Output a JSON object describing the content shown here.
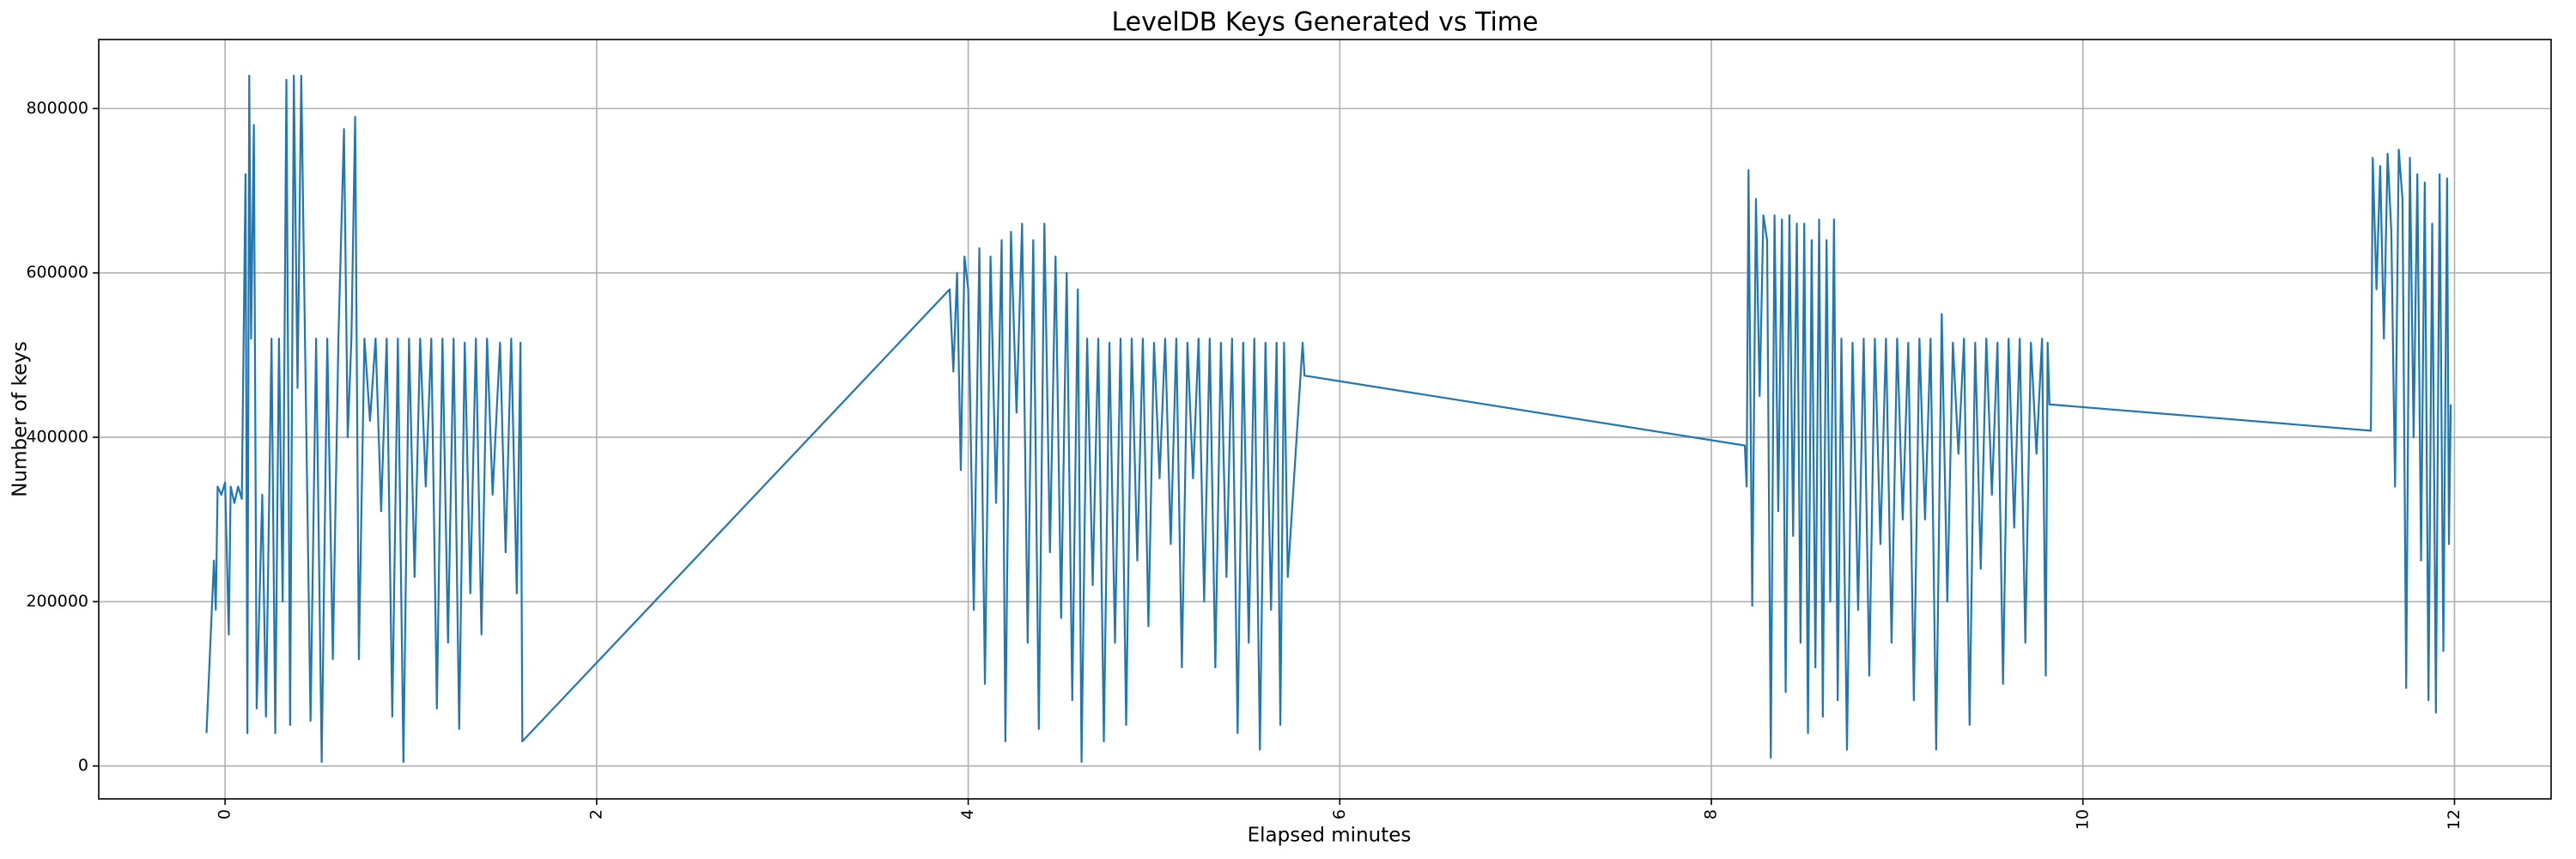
{
  "chart_data": {
    "type": "line",
    "title": "LevelDB Keys Generated vs Time",
    "xlabel": "Elapsed minutes",
    "ylabel": "Number of keys",
    "xlim": [
      -0.68,
      12.52
    ],
    "ylim": [
      -40000,
      884000
    ],
    "xticks": [
      0,
      2,
      4,
      6,
      8,
      10,
      12
    ],
    "yticks": [
      0,
      200000,
      400000,
      600000,
      800000
    ],
    "grid": true,
    "series": [
      {
        "name": "keys",
        "color": "#1f77b4",
        "x": [
          -0.1,
          -0.06,
          -0.05,
          -0.04,
          -0.02,
          0.0,
          0.02,
          0.03,
          0.05,
          0.07,
          0.09,
          0.11,
          0.12,
          0.13,
          0.14,
          0.155,
          0.17,
          0.2,
          0.22,
          0.25,
          0.27,
          0.29,
          0.31,
          0.33,
          0.35,
          0.37,
          0.39,
          0.41,
          0.43,
          0.46,
          0.49,
          0.52,
          0.55,
          0.58,
          0.61,
          0.64,
          0.66,
          0.68,
          0.7,
          0.72,
          0.75,
          0.78,
          0.81,
          0.84,
          0.87,
          0.9,
          0.93,
          0.96,
          0.99,
          1.02,
          1.05,
          1.08,
          1.11,
          1.14,
          1.17,
          1.2,
          1.23,
          1.26,
          1.29,
          1.32,
          1.35,
          1.38,
          1.41,
          1.44,
          1.48,
          1.51,
          1.54,
          1.57,
          1.59,
          1.6,
          3.9,
          3.92,
          3.94,
          3.96,
          3.98,
          4.0,
          4.03,
          4.06,
          4.09,
          4.12,
          4.15,
          4.18,
          4.2,
          4.23,
          4.26,
          4.29,
          4.32,
          4.35,
          4.38,
          4.41,
          4.44,
          4.47,
          4.5,
          4.53,
          4.56,
          4.59,
          4.61,
          4.64,
          4.67,
          4.7,
          4.73,
          4.76,
          4.79,
          4.82,
          4.85,
          4.88,
          4.91,
          4.94,
          4.97,
          5.0,
          5.03,
          5.06,
          5.09,
          5.12,
          5.15,
          5.18,
          5.21,
          5.24,
          5.27,
          5.3,
          5.33,
          5.36,
          5.39,
          5.42,
          5.45,
          5.48,
          5.51,
          5.54,
          5.57,
          5.6,
          5.63,
          5.66,
          5.68,
          5.7,
          5.72,
          5.8,
          5.81,
          8.18,
          8.19,
          8.2,
          8.22,
          8.24,
          8.26,
          8.28,
          8.3,
          8.32,
          8.34,
          8.36,
          8.38,
          8.4,
          8.42,
          8.44,
          8.46,
          8.48,
          8.5,
          8.52,
          8.54,
          8.56,
          8.58,
          8.6,
          8.62,
          8.64,
          8.66,
          8.68,
          8.7,
          8.73,
          8.76,
          8.79,
          8.82,
          8.85,
          8.88,
          8.91,
          8.94,
          8.97,
          9.0,
          9.03,
          9.06,
          9.09,
          9.12,
          9.15,
          9.18,
          9.21,
          9.24,
          9.27,
          9.3,
          9.33,
          9.36,
          9.39,
          9.42,
          9.45,
          9.48,
          9.51,
          9.54,
          9.57,
          9.6,
          9.63,
          9.66,
          9.69,
          9.72,
          9.75,
          9.78,
          9.8,
          9.81,
          9.82,
          11.55,
          11.56,
          11.58,
          11.6,
          11.62,
          11.64,
          11.66,
          11.68,
          11.7,
          11.72,
          11.74,
          11.76,
          11.78,
          11.8,
          11.82,
          11.84,
          11.86,
          11.88,
          11.9,
          11.92,
          11.94,
          11.96,
          11.97,
          11.98
        ],
        "values": [
          40000,
          250000,
          190000,
          340000,
          330000,
          345000,
          160000,
          340000,
          320000,
          340000,
          325000,
          720000,
          40000,
          840000,
          520000,
          780000,
          70000,
          330000,
          60000,
          520000,
          40000,
          520000,
          200000,
          835000,
          50000,
          840000,
          460000,
          840000,
          520000,
          55000,
          520000,
          5000,
          520000,
          130000,
          520000,
          775000,
          400000,
          520000,
          790000,
          130000,
          520000,
          420000,
          520000,
          310000,
          520000,
          60000,
          520000,
          5000,
          520000,
          230000,
          520000,
          340000,
          520000,
          70000,
          520000,
          150000,
          520000,
          45000,
          515000,
          210000,
          520000,
          160000,
          520000,
          330000,
          515000,
          260000,
          520000,
          210000,
          515000,
          30000,
          580000,
          480000,
          600000,
          360000,
          620000,
          580000,
          190000,
          630000,
          100000,
          620000,
          320000,
          640000,
          30000,
          650000,
          430000,
          660000,
          150000,
          640000,
          45000,
          660000,
          260000,
          620000,
          180000,
          600000,
          80000,
          580000,
          5000,
          520000,
          220000,
          520000,
          30000,
          515000,
          150000,
          520000,
          50000,
          520000,
          250000,
          520000,
          170000,
          515000,
          350000,
          520000,
          270000,
          520000,
          120000,
          515000,
          350000,
          520000,
          200000,
          520000,
          120000,
          515000,
          230000,
          520000,
          40000,
          515000,
          150000,
          520000,
          20000,
          515000,
          190000,
          515000,
          50000,
          515000,
          230000,
          515000,
          475000,
          390000,
          340000,
          725000,
          195000,
          690000,
          450000,
          670000,
          640000,
          10000,
          670000,
          310000,
          665000,
          90000,
          670000,
          280000,
          660000,
          150000,
          660000,
          40000,
          640000,
          120000,
          665000,
          60000,
          640000,
          200000,
          665000,
          80000,
          520000,
          20000,
          515000,
          190000,
          520000,
          110000,
          520000,
          270000,
          520000,
          150000,
          520000,
          300000,
          515000,
          80000,
          520000,
          300000,
          520000,
          20000,
          550000,
          200000,
          515000,
          380000,
          520000,
          50000,
          515000,
          240000,
          520000,
          330000,
          515000,
          100000,
          520000,
          290000,
          520000,
          150000,
          515000,
          380000,
          520000,
          110000,
          515000,
          440000,
          408000,
          740000,
          580000,
          730000,
          520000,
          745000,
          650000,
          340000,
          750000,
          690000,
          95000,
          740000,
          400000,
          720000,
          250000,
          710000,
          80000,
          660000,
          65000,
          720000,
          140000,
          715000,
          270000,
          440000
        ]
      }
    ]
  }
}
